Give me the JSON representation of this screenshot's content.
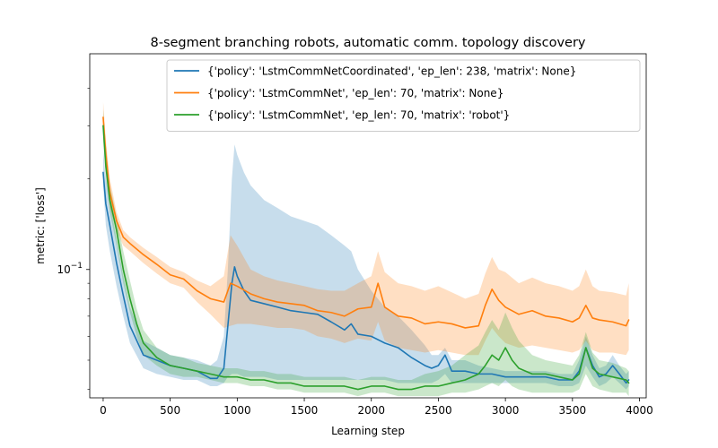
{
  "chart_data": {
    "type": "line",
    "title": "8-segment branching robots, automatic comm. topology discovery",
    "xlabel": "Learning step",
    "ylabel": "metric: ['loss']",
    "xlim": [
      -100,
      4050
    ],
    "ylim": [
      0.0375,
      0.52
    ],
    "y_scale": "log",
    "x_ticks": [
      0,
      500,
      1000,
      1500,
      2000,
      2500,
      3000,
      3500,
      4000
    ],
    "y_major_ticks": [
      {
        "value": 0.1,
        "label": "10",
        "exp": "−1"
      }
    ],
    "y_minor_ticks": [
      0.04,
      0.05,
      0.06,
      0.07,
      0.08,
      0.09,
      0.2,
      0.3,
      0.4
    ],
    "grid": false,
    "legend_position": "top-right",
    "series": [
      {
        "name": "{'policy': 'LstmCommNetCoordinated', 'ep_len': 238, 'matrix': None}",
        "color": "#1f77b4",
        "x": [
          0,
          20,
          50,
          100,
          150,
          200,
          300,
          400,
          500,
          600,
          700,
          800,
          850,
          900,
          930,
          960,
          980,
          1000,
          1050,
          1100,
          1200,
          1300,
          1400,
          1500,
          1600,
          1700,
          1800,
          1850,
          1900,
          2000,
          2100,
          2200,
          2300,
          2400,
          2450,
          2500,
          2550,
          2600,
          2700,
          2800,
          2900,
          3000,
          3100,
          3200,
          3300,
          3400,
          3500,
          3550,
          3600,
          3650,
          3700,
          3750,
          3800,
          3850,
          3900,
          3920
        ],
        "y": [
          0.21,
          0.165,
          0.14,
          0.105,
          0.082,
          0.065,
          0.052,
          0.05,
          0.048,
          0.047,
          0.046,
          0.0435,
          0.0435,
          0.047,
          0.065,
          0.09,
          0.102,
          0.095,
          0.085,
          0.079,
          0.077,
          0.075,
          0.073,
          0.072,
          0.071,
          0.067,
          0.063,
          0.066,
          0.061,
          0.06,
          0.057,
          0.055,
          0.051,
          0.048,
          0.047,
          0.048,
          0.052,
          0.046,
          0.046,
          0.045,
          0.045,
          0.044,
          0.044,
          0.044,
          0.044,
          0.043,
          0.043,
          0.046,
          0.055,
          0.048,
          0.044,
          0.045,
          0.048,
          0.045,
          0.042,
          0.043
        ],
        "band_upper": [
          0.25,
          0.2,
          0.17,
          0.125,
          0.095,
          0.075,
          0.058,
          0.055,
          0.052,
          0.051,
          0.05,
          0.048,
          0.05,
          0.06,
          0.1,
          0.2,
          0.26,
          0.24,
          0.21,
          0.19,
          0.17,
          0.16,
          0.15,
          0.145,
          0.14,
          0.13,
          0.12,
          0.115,
          0.1,
          0.085,
          0.075,
          0.07,
          0.063,
          0.056,
          0.052,
          0.052,
          0.055,
          0.05,
          0.05,
          0.048,
          0.047,
          0.046,
          0.046,
          0.046,
          0.046,
          0.045,
          0.045,
          0.05,
          0.06,
          0.052,
          0.047,
          0.048,
          0.052,
          0.048,
          0.045,
          0.046
        ],
        "band_lower": [
          0.19,
          0.14,
          0.115,
          0.088,
          0.07,
          0.057,
          0.047,
          0.045,
          0.044,
          0.043,
          0.043,
          0.041,
          0.041,
          0.042,
          0.044,
          0.045,
          0.045,
          0.045,
          0.044,
          0.044,
          0.044,
          0.043,
          0.043,
          0.043,
          0.043,
          0.043,
          0.043,
          0.043,
          0.043,
          0.043,
          0.043,
          0.042,
          0.042,
          0.042,
          0.042,
          0.043,
          0.045,
          0.042,
          0.042,
          0.042,
          0.042,
          0.042,
          0.042,
          0.042,
          0.042,
          0.041,
          0.041,
          0.042,
          0.048,
          0.044,
          0.041,
          0.042,
          0.044,
          0.042,
          0.04,
          0.041
        ]
      },
      {
        "name": "{'policy': 'LstmCommNet', 'ep_len': 70, 'matrix': None}",
        "color": "#ff7f0e",
        "x": [
          0,
          20,
          50,
          100,
          150,
          200,
          300,
          400,
          500,
          600,
          700,
          800,
          900,
          950,
          1000,
          1100,
          1200,
          1300,
          1400,
          1500,
          1600,
          1700,
          1800,
          1900,
          2000,
          2050,
          2100,
          2200,
          2300,
          2400,
          2500,
          2600,
          2700,
          2800,
          2850,
          2900,
          2950,
          3000,
          3100,
          3200,
          3300,
          3400,
          3500,
          3550,
          3600,
          3650,
          3700,
          3800,
          3900,
          3920
        ],
        "y": [
          0.32,
          0.24,
          0.18,
          0.145,
          0.128,
          0.122,
          0.112,
          0.104,
          0.096,
          0.093,
          0.085,
          0.08,
          0.078,
          0.09,
          0.088,
          0.083,
          0.08,
          0.078,
          0.077,
          0.076,
          0.073,
          0.072,
          0.07,
          0.074,
          0.075,
          0.09,
          0.075,
          0.07,
          0.069,
          0.066,
          0.067,
          0.066,
          0.064,
          0.065,
          0.076,
          0.086,
          0.079,
          0.075,
          0.071,
          0.073,
          0.07,
          0.069,
          0.067,
          0.069,
          0.076,
          0.069,
          0.068,
          0.067,
          0.065,
          0.068
        ],
        "band_upper": [
          0.36,
          0.27,
          0.2,
          0.155,
          0.135,
          0.128,
          0.118,
          0.11,
          0.102,
          0.098,
          0.092,
          0.088,
          0.095,
          0.13,
          0.12,
          0.1,
          0.095,
          0.092,
          0.09,
          0.088,
          0.086,
          0.085,
          0.085,
          0.09,
          0.095,
          0.115,
          0.098,
          0.09,
          0.088,
          0.085,
          0.088,
          0.084,
          0.08,
          0.083,
          0.097,
          0.11,
          0.1,
          0.098,
          0.09,
          0.094,
          0.09,
          0.088,
          0.085,
          0.088,
          0.1,
          0.088,
          0.085,
          0.084,
          0.082,
          0.09
        ],
        "band_lower": [
          0.28,
          0.21,
          0.16,
          0.135,
          0.12,
          0.115,
          0.105,
          0.097,
          0.09,
          0.087,
          0.078,
          0.071,
          0.064,
          0.065,
          0.066,
          0.066,
          0.065,
          0.064,
          0.064,
          0.063,
          0.06,
          0.059,
          0.057,
          0.059,
          0.058,
          0.067,
          0.058,
          0.055,
          0.054,
          0.053,
          0.054,
          0.053,
          0.052,
          0.052,
          0.058,
          0.064,
          0.06,
          0.057,
          0.055,
          0.056,
          0.055,
          0.054,
          0.053,
          0.054,
          0.058,
          0.054,
          0.053,
          0.053,
          0.052,
          0.054
        ]
      },
      {
        "name": "{'policy': 'LstmCommNet', 'ep_len': 70, 'matrix': 'robot'}",
        "color": "#2ca02c",
        "x": [
          0,
          20,
          50,
          100,
          150,
          200,
          250,
          300,
          400,
          500,
          600,
          700,
          800,
          900,
          1000,
          1100,
          1200,
          1300,
          1400,
          1500,
          1600,
          1700,
          1800,
          1900,
          2000,
          2100,
          2200,
          2300,
          2400,
          2500,
          2600,
          2700,
          2800,
          2850,
          2900,
          2950,
          3000,
          3050,
          3100,
          3200,
          3300,
          3400,
          3500,
          3550,
          3600,
          3650,
          3700,
          3800,
          3900,
          3920
        ],
        "y": [
          0.3,
          0.22,
          0.17,
          0.135,
          0.1,
          0.08,
          0.066,
          0.057,
          0.051,
          0.048,
          0.047,
          0.046,
          0.045,
          0.044,
          0.044,
          0.043,
          0.043,
          0.042,
          0.042,
          0.041,
          0.041,
          0.041,
          0.041,
          0.04,
          0.041,
          0.041,
          0.04,
          0.04,
          0.041,
          0.041,
          0.042,
          0.043,
          0.045,
          0.048,
          0.052,
          0.05,
          0.055,
          0.05,
          0.047,
          0.045,
          0.045,
          0.044,
          0.043,
          0.045,
          0.055,
          0.047,
          0.045,
          0.044,
          0.043,
          0.042
        ],
        "band_upper": [
          0.34,
          0.26,
          0.19,
          0.15,
          0.115,
          0.092,
          0.074,
          0.063,
          0.055,
          0.052,
          0.051,
          0.049,
          0.048,
          0.047,
          0.047,
          0.046,
          0.046,
          0.045,
          0.045,
          0.044,
          0.044,
          0.044,
          0.044,
          0.043,
          0.044,
          0.044,
          0.043,
          0.043,
          0.045,
          0.046,
          0.048,
          0.052,
          0.056,
          0.062,
          0.068,
          0.063,
          0.072,
          0.064,
          0.058,
          0.052,
          0.05,
          0.049,
          0.048,
          0.052,
          0.062,
          0.053,
          0.05,
          0.049,
          0.047,
          0.046
        ],
        "band_lower": [
          0.27,
          0.2,
          0.155,
          0.12,
          0.09,
          0.072,
          0.06,
          0.052,
          0.048,
          0.045,
          0.044,
          0.044,
          0.043,
          0.042,
          0.042,
          0.041,
          0.041,
          0.04,
          0.04,
          0.039,
          0.039,
          0.039,
          0.039,
          0.038,
          0.039,
          0.039,
          0.038,
          0.038,
          0.038,
          0.038,
          0.039,
          0.039,
          0.04,
          0.041,
          0.042,
          0.041,
          0.043,
          0.041,
          0.04,
          0.039,
          0.039,
          0.039,
          0.039,
          0.04,
          0.045,
          0.041,
          0.04,
          0.039,
          0.039,
          0.038
        ]
      }
    ]
  }
}
